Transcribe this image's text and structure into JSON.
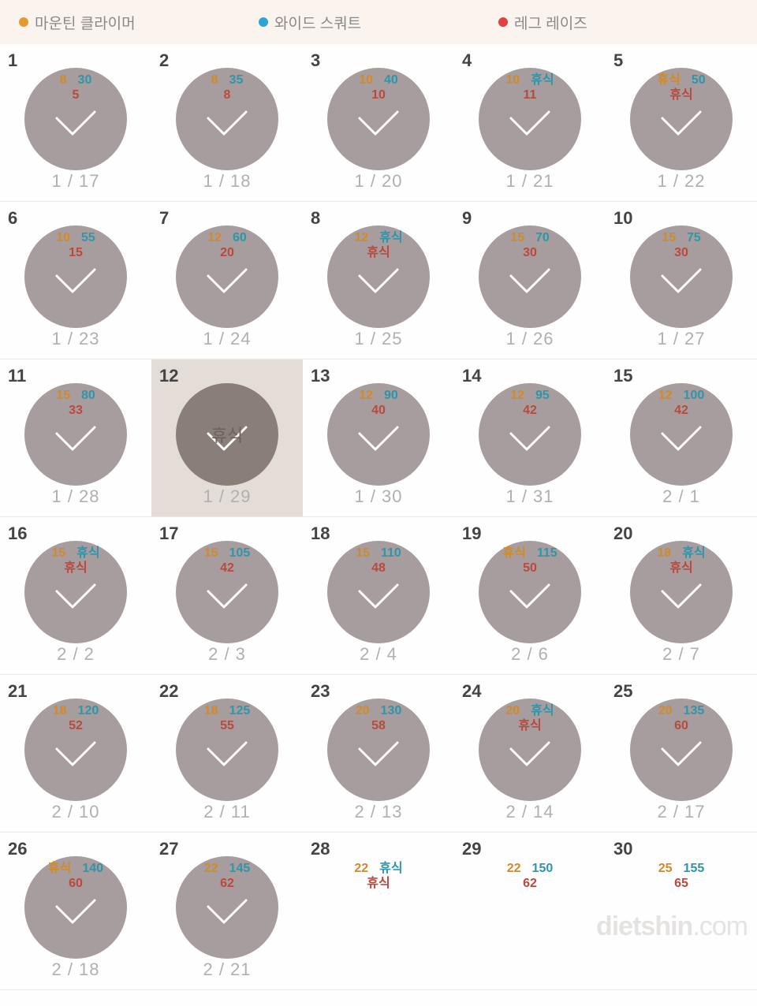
{
  "legend": {
    "items": [
      {
        "label": "마운틴 클라이머",
        "color": "#e49a2e"
      },
      {
        "label": "와이드 스쿼트",
        "color": "#2aa6d2"
      },
      {
        "label": "레그 레이즈",
        "color": "#e2403b"
      }
    ]
  },
  "colors": {
    "a": "#d18a28",
    "b": "#2f95a9",
    "c": "#b84a3d"
  },
  "rest_label": "휴식",
  "watermark": {
    "a": "dietshin",
    "b": ".com"
  },
  "days": [
    {
      "n": 1,
      "a": "8",
      "b": "30",
      "c": "5",
      "date": "1 / 17",
      "done": true
    },
    {
      "n": 2,
      "a": "8",
      "b": "35",
      "c": "8",
      "date": "1 / 18",
      "done": true
    },
    {
      "n": 3,
      "a": "10",
      "b": "40",
      "c": "10",
      "date": "1 / 20",
      "done": true
    },
    {
      "n": 4,
      "a": "10",
      "b": "휴식",
      "c": "11",
      "date": "1 / 21",
      "done": true
    },
    {
      "n": 5,
      "a": "휴식",
      "b": "50",
      "c": "휴식",
      "date": "1 / 22",
      "done": true
    },
    {
      "n": 6,
      "a": "10",
      "b": "55",
      "c": "15",
      "date": "1 / 23",
      "done": true
    },
    {
      "n": 7,
      "a": "12",
      "b": "60",
      "c": "20",
      "date": "1 / 24",
      "done": true
    },
    {
      "n": 8,
      "a": "12",
      "b": "휴식",
      "c": "휴식",
      "date": "1 / 25",
      "done": true
    },
    {
      "n": 9,
      "a": "15",
      "b": "70",
      "c": "30",
      "date": "1 / 26",
      "done": true
    },
    {
      "n": 10,
      "a": "15",
      "b": "75",
      "c": "30",
      "date": "1 / 27",
      "done": true
    },
    {
      "n": 11,
      "a": "15",
      "b": "80",
      "c": "33",
      "date": "1 / 28",
      "done": true
    },
    {
      "n": 12,
      "rest": true,
      "date": "1 / 29",
      "done": true,
      "highlight": true
    },
    {
      "n": 13,
      "a": "12",
      "b": "90",
      "c": "40",
      "date": "1 / 30",
      "done": true
    },
    {
      "n": 14,
      "a": "12",
      "b": "95",
      "c": "42",
      "date": "1 / 31",
      "done": true
    },
    {
      "n": 15,
      "a": "12",
      "b": "100",
      "c": "42",
      "date": "2 / 1",
      "done": true
    },
    {
      "n": 16,
      "a": "15",
      "b": "휴식",
      "c": "휴식",
      "date": "2 / 2",
      "done": true
    },
    {
      "n": 17,
      "a": "15",
      "b": "105",
      "c": "42",
      "date": "2 / 3",
      "done": true
    },
    {
      "n": 18,
      "a": "15",
      "b": "110",
      "c": "48",
      "date": "2 / 4",
      "done": true
    },
    {
      "n": 19,
      "a": "휴식",
      "b": "115",
      "c": "50",
      "date": "2 / 6",
      "done": true
    },
    {
      "n": 20,
      "a": "18",
      "b": "휴식",
      "c": "휴식",
      "date": "2 / 7",
      "done": true
    },
    {
      "n": 21,
      "a": "18",
      "b": "120",
      "c": "52",
      "date": "2 / 10",
      "done": true
    },
    {
      "n": 22,
      "a": "18",
      "b": "125",
      "c": "55",
      "date": "2 / 11",
      "done": true
    },
    {
      "n": 23,
      "a": "20",
      "b": "130",
      "c": "58",
      "date": "2 / 13",
      "done": true
    },
    {
      "n": 24,
      "a": "20",
      "b": "휴식",
      "c": "휴식",
      "date": "2 / 14",
      "done": true
    },
    {
      "n": 25,
      "a": "20",
      "b": "135",
      "c": "60",
      "date": "2 / 17",
      "done": true
    },
    {
      "n": 26,
      "a": "휴식",
      "b": "140",
      "c": "60",
      "date": "2 / 18",
      "done": true
    },
    {
      "n": 27,
      "a": "22",
      "b": "145",
      "c": "62",
      "date": "2 / 21",
      "done": true
    },
    {
      "n": 28,
      "a": "22",
      "b": "휴식",
      "c": "휴식",
      "date": "",
      "done": false
    },
    {
      "n": 29,
      "a": "22",
      "b": "150",
      "c": "62",
      "date": "",
      "done": false
    },
    {
      "n": 30,
      "a": "25",
      "b": "155",
      "c": "65",
      "date": "",
      "done": false
    }
  ]
}
